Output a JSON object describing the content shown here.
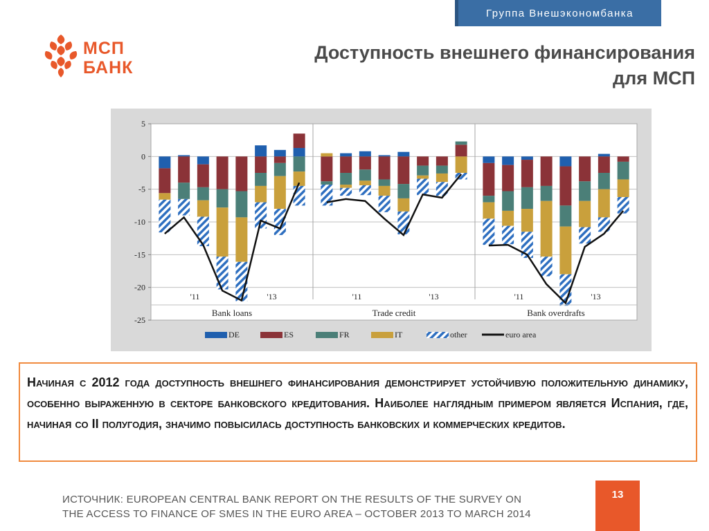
{
  "header": {
    "group_label": "Группа Внешэкономбанка",
    "title_line1": "Доступность внешнего финансирования",
    "title_line2": "для МСП"
  },
  "logo": {
    "line1": "МСП",
    "line2": "БАНК",
    "icon": "pinecone-logo-icon",
    "brand_color": "#e8582a"
  },
  "chart_data": {
    "type": "bar",
    "stacked": true,
    "ylim": [
      -25,
      5
    ],
    "yticks": [
      5,
      0,
      -5,
      -10,
      -15,
      -20,
      -25
    ],
    "grid": true,
    "legend_position": "bottom",
    "series": [
      {
        "name": "DE",
        "color": "#1f5fae"
      },
      {
        "name": "ES",
        "color": "#8b3338"
      },
      {
        "name": "FR",
        "color": "#4b7f78"
      },
      {
        "name": "IT",
        "color": "#c9a03c"
      },
      {
        "name": "other",
        "color": "#2e6fc0",
        "pattern": "hatched"
      },
      {
        "name": "euro area",
        "color": "#111111",
        "type": "line"
      }
    ],
    "panels": [
      {
        "label": "Bank loans",
        "year_labels": [
          "'11",
          "'13"
        ],
        "year_positions": [
          2,
          6
        ],
        "bars": [
          {
            "DE": -1.8,
            "ES": -3.8,
            "FR": 0,
            "IT": -1.0,
            "other": -5.0
          },
          {
            "DE": 0.2,
            "ES": -4.0,
            "FR": -2.5,
            "IT": 0,
            "other": -2.5
          },
          {
            "DE": -1.2,
            "ES": -3.5,
            "FR": -2.0,
            "IT": -2.5,
            "other": -4.5
          },
          {
            "DE": 0,
            "ES": -5.0,
            "FR": -2.8,
            "IT": -7.5,
            "other": -5.0
          },
          {
            "DE": 0,
            "ES": -5.3,
            "FR": -4.0,
            "IT": -6.8,
            "other": -6.0
          },
          {
            "DE": 1.7,
            "ES": -2.5,
            "FR": -2.0,
            "IT": -2.5,
            "other": -4.0
          },
          {
            "DE": 1.0,
            "ES": -1.0,
            "FR": -2.0,
            "IT": -5.0,
            "other": -4.0
          },
          {
            "DE": 1.3,
            "ES": 2.2,
            "FR": -2.3,
            "IT": -2.2,
            "other": -3.0
          }
        ],
        "euro_area": [
          -11.8,
          -9.3,
          -13.5,
          -20.5,
          -22.0,
          -9.8,
          -11.0,
          -4.0
        ]
      },
      {
        "label": "Trade credit",
        "year_labels": [
          "'11",
          "'13"
        ],
        "year_positions": [
          2,
          6
        ],
        "bars": [
          {
            "DE": 0,
            "ES": -3.8,
            "FR": -0.5,
            "IT": 0.5,
            "other": -3.2
          },
          {
            "DE": 0.5,
            "ES": -2.5,
            "FR": -1.8,
            "IT": -0.5,
            "other": -1.2
          },
          {
            "DE": 0.8,
            "ES": -2.0,
            "FR": -1.7,
            "IT": -0.7,
            "other": -1.5
          },
          {
            "DE": 0.2,
            "ES": -3.5,
            "FR": -1.0,
            "IT": -1.5,
            "other": -2.5
          },
          {
            "DE": 0.7,
            "ES": -4.2,
            "FR": -2.2,
            "IT": -2.0,
            "other": -3.5
          },
          {
            "DE": 0,
            "ES": -1.4,
            "FR": -1.5,
            "IT": -0.5,
            "other": -2.5
          },
          {
            "DE": 0,
            "ES": -1.4,
            "FR": -1.2,
            "IT": -1.3,
            "other": -2.1
          },
          {
            "DE": 0,
            "ES": 1.8,
            "FR": 0.5,
            "IT": -2.5,
            "other": -1.0
          }
        ],
        "euro_area": [
          -7.0,
          -6.5,
          -6.8,
          -9.5,
          -12.0,
          -5.8,
          -6.3,
          -2.7
        ]
      },
      {
        "label": "Bank overdrafts",
        "year_labels": [
          "'11",
          "'13"
        ],
        "year_positions": [
          2,
          6
        ],
        "bars": [
          {
            "DE": -1.0,
            "ES": -5.0,
            "FR": -1.0,
            "IT": -2.5,
            "other": -4.0
          },
          {
            "DE": -1.3,
            "ES": -4.0,
            "FR": -3.0,
            "IT": -2.3,
            "other": -2.8
          },
          {
            "DE": -0.5,
            "ES": -4.2,
            "FR": -3.3,
            "IT": -3.5,
            "other": -4.0
          },
          {
            "DE": 0,
            "ES": -4.5,
            "FR": -2.3,
            "IT": -8.5,
            "other": -3.0
          },
          {
            "DE": -1.5,
            "ES": -6.0,
            "FR": -3.2,
            "IT": -7.3,
            "other": -4.8
          },
          {
            "DE": 0,
            "ES": -3.8,
            "FR": -3.0,
            "IT": -4.0,
            "other": -2.5
          },
          {
            "DE": 0.4,
            "ES": -2.5,
            "FR": -2.5,
            "IT": -4.3,
            "other": -2.2
          },
          {
            "DE": 0,
            "ES": -0.8,
            "FR": -2.7,
            "IT": -2.7,
            "other": -2.5
          }
        ],
        "euro_area": [
          -13.6,
          -13.5,
          -15.0,
          -19.5,
          -22.4,
          -13.8,
          -11.8,
          -8.3
        ]
      }
    ]
  },
  "note": {
    "text": "Начиная с 2012 года доступность внешнего финансирования демонстрирует устойчивую положительную динамику, особенно выраженную в секторе банковского кредитования. Наиболее наглядным примером является Испания, где, начиная со II полугодия, значимо повысилась доступность банковских и коммерческих кредитов.",
    "border_color": "#f08a3e"
  },
  "source": {
    "line1": "ИСТОЧНИК: EUROPEAN CENTRAL BANK REPORT ON THE RESULTS OF THE SURVEY ON",
    "line2": "THE ACCESS TO FINANCE OF SMES IN THE EURO AREA – OCTOBER 2013 TO MARCH 2014"
  },
  "page": {
    "number": "13"
  }
}
